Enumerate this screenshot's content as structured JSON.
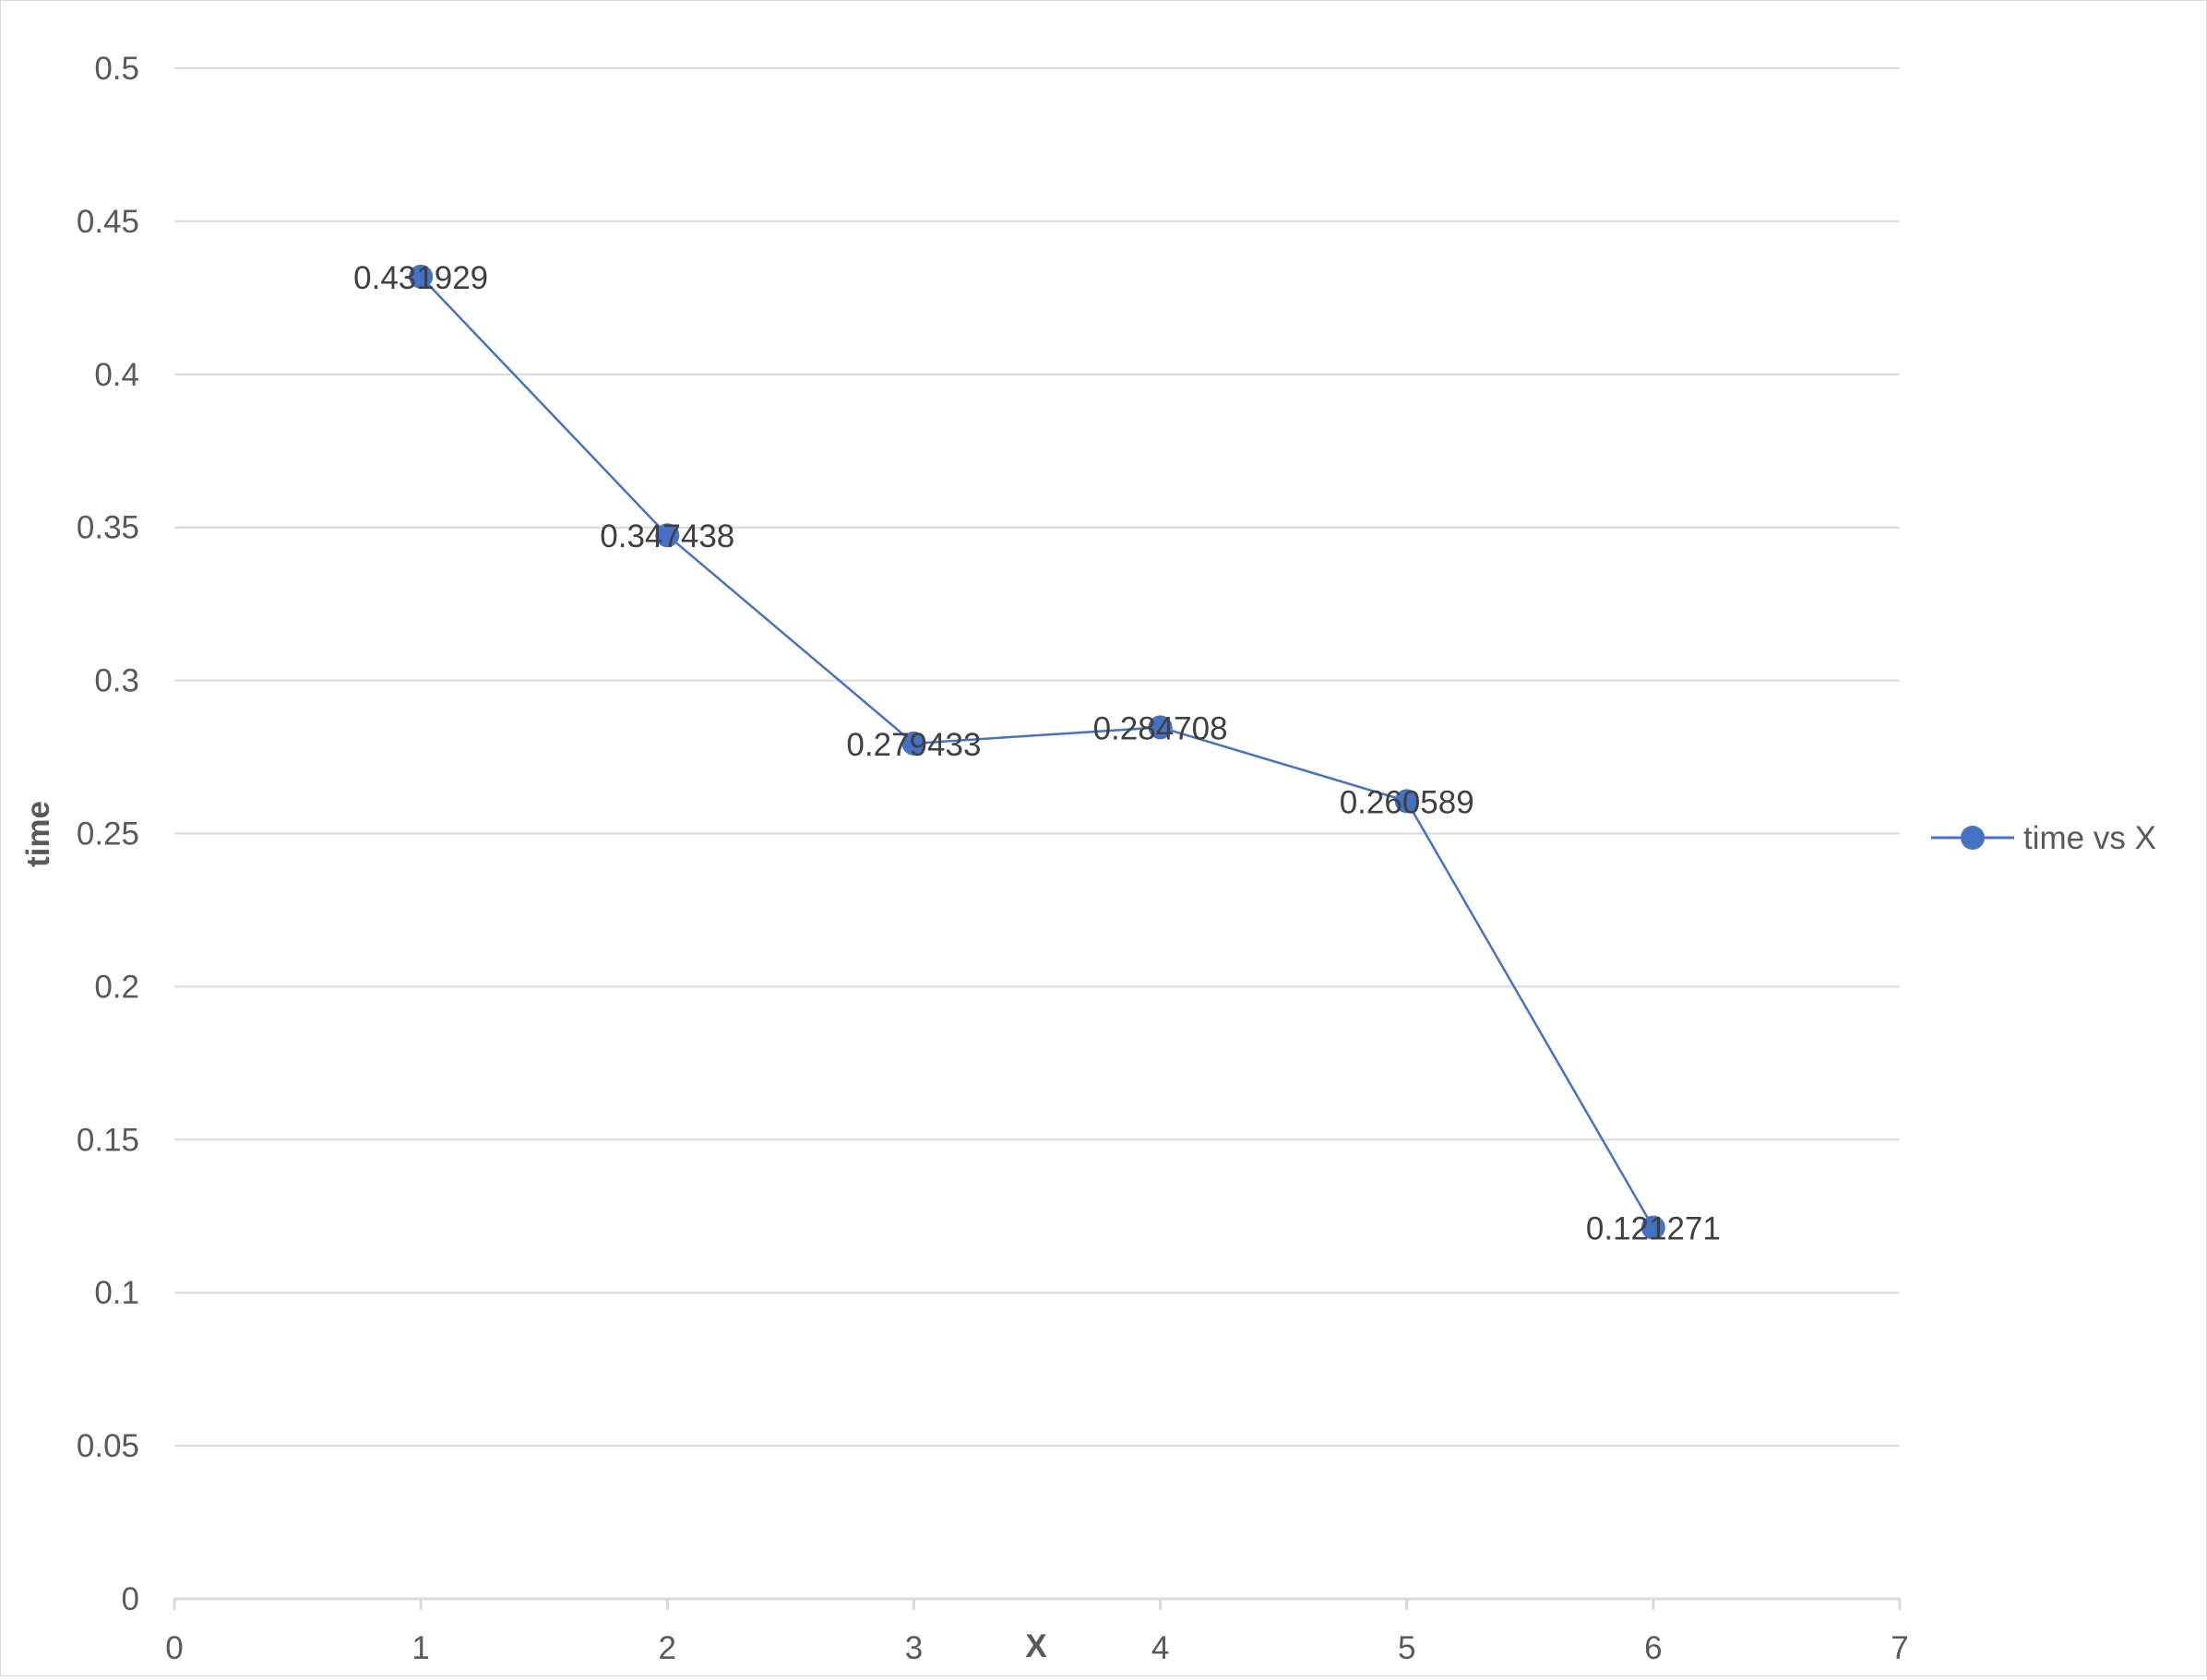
{
  "chart_data": {
    "type": "scatter",
    "title": "",
    "xlabel": "X",
    "ylabel": "time",
    "xlim": [
      0,
      7
    ],
    "ylim": [
      0,
      0.5
    ],
    "x_ticks": [
      "0",
      "1",
      "2",
      "3",
      "4",
      "5",
      "6",
      "7"
    ],
    "y_ticks": [
      "0",
      "0.05",
      "0.1",
      "0.15",
      "0.2",
      "0.25",
      "0.3",
      "0.35",
      "0.4",
      "0.45",
      "0.5"
    ],
    "grid": "horizontal",
    "legend_position": "right",
    "series": [
      {
        "name": "time vs X",
        "color": "#4472c4",
        "marker": "circle",
        "connected": true,
        "x": [
          1,
          2,
          3,
          4,
          5,
          6
        ],
        "y": [
          0.431929,
          0.347438,
          0.279433,
          0.284708,
          0.260589,
          0.121271
        ],
        "labels": [
          "0.431929",
          "0.347438",
          "0.279433",
          "0.284708",
          "0.260589",
          "0.121271"
        ]
      }
    ]
  }
}
